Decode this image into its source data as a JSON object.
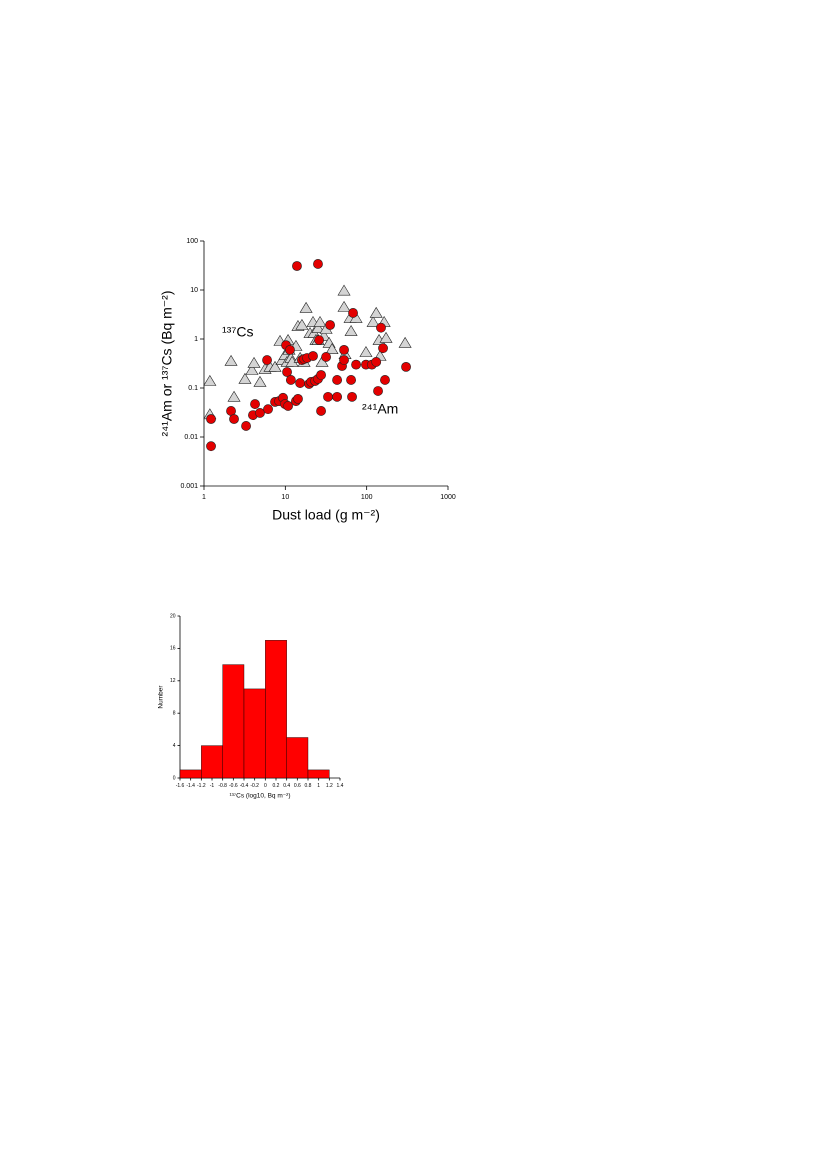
{
  "chart_data": [
    {
      "type": "scatter",
      "x_label": "Dust load (g m⁻²)",
      "y_label": "²⁴¹Am or ¹³⁷Cs (Bq m⁻²)",
      "xscale": "log",
      "yscale": "log",
      "xlim": [
        1,
        1000
      ],
      "ylim": [
        0.001,
        100
      ],
      "xticks": [
        1,
        10,
        100,
        1000
      ],
      "yticks": [
        0.001,
        0.01,
        0.1,
        1,
        10,
        100
      ],
      "series": [
        {
          "name": "¹³⁷Cs",
          "marker": "triangle",
          "color": "#d4d4d4",
          "x": [
            1.18,
            1.18,
            2.15,
            2.34,
            3.19,
            3.89,
            4.12,
            4.88,
            5.63,
            6.48,
            7.47,
            8.6,
            9.1,
            9.9,
            10.5,
            11.1,
            11.7,
            10.8,
            12.1,
            13.5,
            14.3,
            16,
            17,
            18,
            20.1,
            21.9,
            22.5,
            23.8,
            25.2,
            26.7,
            28.3,
            29.9,
            31.7,
            34.5,
            37.5,
            52.7,
            52.7,
            54.2,
            62.5,
            64.3,
            74.1,
            98,
            120,
            131,
            142,
            146,
            164,
            173,
            297,
            15.2,
            25.2
          ],
          "values": [
            0.139,
            0.029,
            0.356,
            0.066,
            0.153,
            0.233,
            0.324,
            0.133,
            0.244,
            0.269,
            0.269,
            0.91,
            0.37,
            0.47,
            0.34,
            0.6,
            0.41,
            0.95,
            0.34,
            0.72,
            1.84,
            1.93,
            0.34,
            4.3,
            1.32,
            2.22,
            1.32,
            0.95,
            1.67,
            2.22,
            0.34,
            1.15,
            1.6,
            0.83,
            0.62,
            9.7,
            4.5,
            0.49,
            2.68,
            1.45,
            2.68,
            0.54,
            2.22,
            3.4,
            0.95,
            0.45,
            2.22,
            1.05,
            0.83,
            0.41,
            0.95
          ]
        },
        {
          "name": "²⁴¹Am",
          "marker": "circle",
          "color": "#e30000",
          "x": [
            1.22,
            1.22,
            2.15,
            2.34,
            3.29,
            4.0,
            4.24,
            4.88,
            5.96,
            6.13,
            7.47,
            8.36,
            9.37,
            9.9,
            10.2,
            10.5,
            10.8,
            11.4,
            11.7,
            13.5,
            14.3,
            15.2,
            16,
            17,
            18.5,
            19.6,
            20.7,
            21.9,
            23.2,
            25.2,
            26,
            27.5,
            27.5,
            31.7,
            33.5,
            35.5,
            43.3,
            49.8,
            52.7,
            64.3,
            66.1,
            52.7,
            74.1,
            98,
            116,
            131,
            138,
            150,
            159,
            168,
            305,
            13.9,
            25.2,
            68,
            43.3
          ],
          "values": [
            0.0233,
            0.0065,
            0.034,
            0.0233,
            0.0168,
            0.028,
            0.047,
            0.031,
            0.372,
            0.037,
            0.052,
            0.054,
            0.063,
            0.047,
            0.75,
            0.212,
            0.043,
            0.6,
            0.146,
            0.054,
            0.06,
            0.126,
            0.372,
            0.39,
            0.41,
            0.121,
            0.133,
            0.45,
            0.139,
            0.153,
            0.95,
            0.034,
            0.184,
            0.43,
            0.066,
            1.93,
            0.146,
            0.281,
            0.372,
            0.146,
            0.066,
            0.6,
            0.3,
            0.3,
            0.3,
            0.34,
            0.087,
            1.7,
            0.65,
            0.146,
            0.27,
            30.9,
            34,
            3.4,
            0.066
          ]
        }
      ]
    },
    {
      "type": "histogram",
      "x_label": "¹³⁷Cs (log10, Bq m⁻²)",
      "y_label": "Number",
      "color": "#ff0000",
      "bins": [
        -1.6,
        -1.2,
        -0.8,
        -0.4,
        0,
        0.4,
        0.8,
        1.2
      ],
      "values": [
        1,
        4,
        14,
        11,
        17,
        5,
        1
      ],
      "xlim": [
        -1.6,
        1.4
      ],
      "ylim": [
        0,
        20
      ],
      "xticks": [
        -1.6,
        -1.4,
        -1.2,
        -1,
        -0.8,
        -0.6,
        -0.4,
        -0.2,
        0,
        0.2,
        0.4,
        0.6,
        0.8,
        1,
        1.2,
        1.4
      ],
      "yticks": [
        0,
        4,
        8,
        12,
        16,
        20
      ]
    }
  ]
}
